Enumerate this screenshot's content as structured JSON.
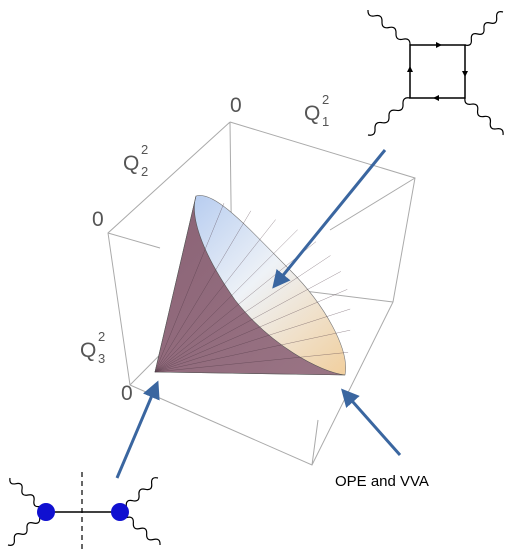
{
  "axis_labels": {
    "q1": {
      "base": "Q",
      "sub": "1",
      "sup": "2"
    },
    "q2": {
      "base": "Q",
      "sub": "2",
      "sup": "2"
    },
    "q3": {
      "base": "Q",
      "sub": "3",
      "sup": "2"
    }
  },
  "origin_labels": [
    "0",
    "0",
    "0"
  ],
  "annotation": "OPE and VVA"
}
